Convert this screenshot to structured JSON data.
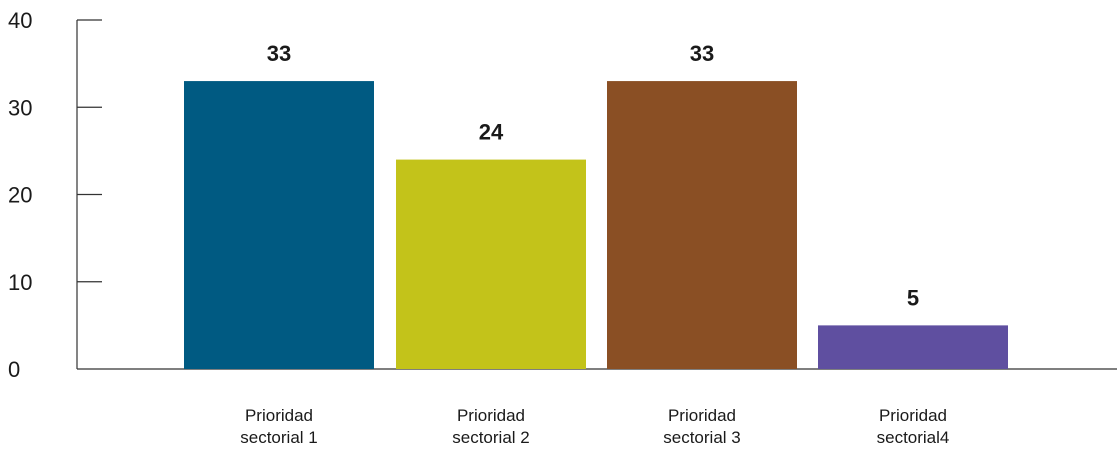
{
  "chart_data": {
    "type": "bar",
    "categories": [
      [
        "Prioridad",
        "sectorial 1"
      ],
      [
        "Prioridad",
        "sectorial 2"
      ],
      [
        "Prioridad",
        "sectorial 3"
      ],
      [
        "Prioridad",
        "sectorial4"
      ]
    ],
    "values": [
      33,
      24,
      33,
      5
    ],
    "data_labels": [
      "33",
      "24",
      "33",
      "5"
    ],
    "colors": [
      "#005a82",
      "#c3c31a",
      "#8a4f24",
      "#5f4fa0"
    ],
    "title": "",
    "xlabel": "",
    "ylabel": "",
    "ylim": [
      0,
      40
    ],
    "yticks": [
      0,
      10,
      20,
      30,
      40
    ],
    "ytick_labels": [
      "0",
      "10",
      "20",
      "30",
      "40"
    ],
    "grid": false,
    "legend": "none"
  }
}
